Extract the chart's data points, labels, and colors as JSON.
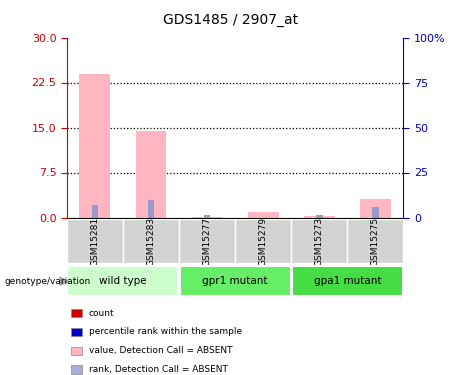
{
  "title": "GDS1485 / 2907_at",
  "samples": [
    "GSM15281",
    "GSM15283",
    "GSM15277",
    "GSM15279",
    "GSM15273",
    "GSM15275"
  ],
  "pink_bars": [
    24.0,
    14.5,
    0.15,
    0.9,
    0.2,
    3.1
  ],
  "blue_bars": [
    2.1,
    2.9,
    0.35,
    0.0,
    0.4,
    1.7
  ],
  "left_ylim": [
    0,
    30
  ],
  "left_yticks": [
    0,
    7.5,
    15,
    22.5,
    30
  ],
  "right_ylim": [
    0,
    100
  ],
  "right_yticks": [
    0,
    25,
    50,
    75,
    100
  ],
  "left_tick_color": "#CC0000",
  "right_tick_color": "#0000CC",
  "pink_color": "#FFB6C1",
  "blue_color": "#9999CC",
  "dotted_lines": [
    7.5,
    15,
    22.5
  ],
  "group_info": [
    {
      "name": "wild type",
      "start": 0,
      "end": 1,
      "color": "#CCFFCC"
    },
    {
      "name": "gpr1 mutant",
      "start": 2,
      "end": 3,
      "color": "#66EE66"
    },
    {
      "name": "gpa1 mutant",
      "start": 4,
      "end": 5,
      "color": "#44DD44"
    }
  ],
  "genotype_label": "genotype/variation",
  "legend_items": [
    {
      "label": "count",
      "color": "#CC0000"
    },
    {
      "label": "percentile rank within the sample",
      "color": "#0000CC"
    },
    {
      "label": "value, Detection Call = ABSENT",
      "color": "#FFB6C1"
    },
    {
      "label": "rank, Detection Call = ABSENT",
      "color": "#AAAADD"
    }
  ],
  "bg_color": "#FFFFFF",
  "sample_box_color": "#D3D3D3",
  "sample_box_edge": "#888888"
}
